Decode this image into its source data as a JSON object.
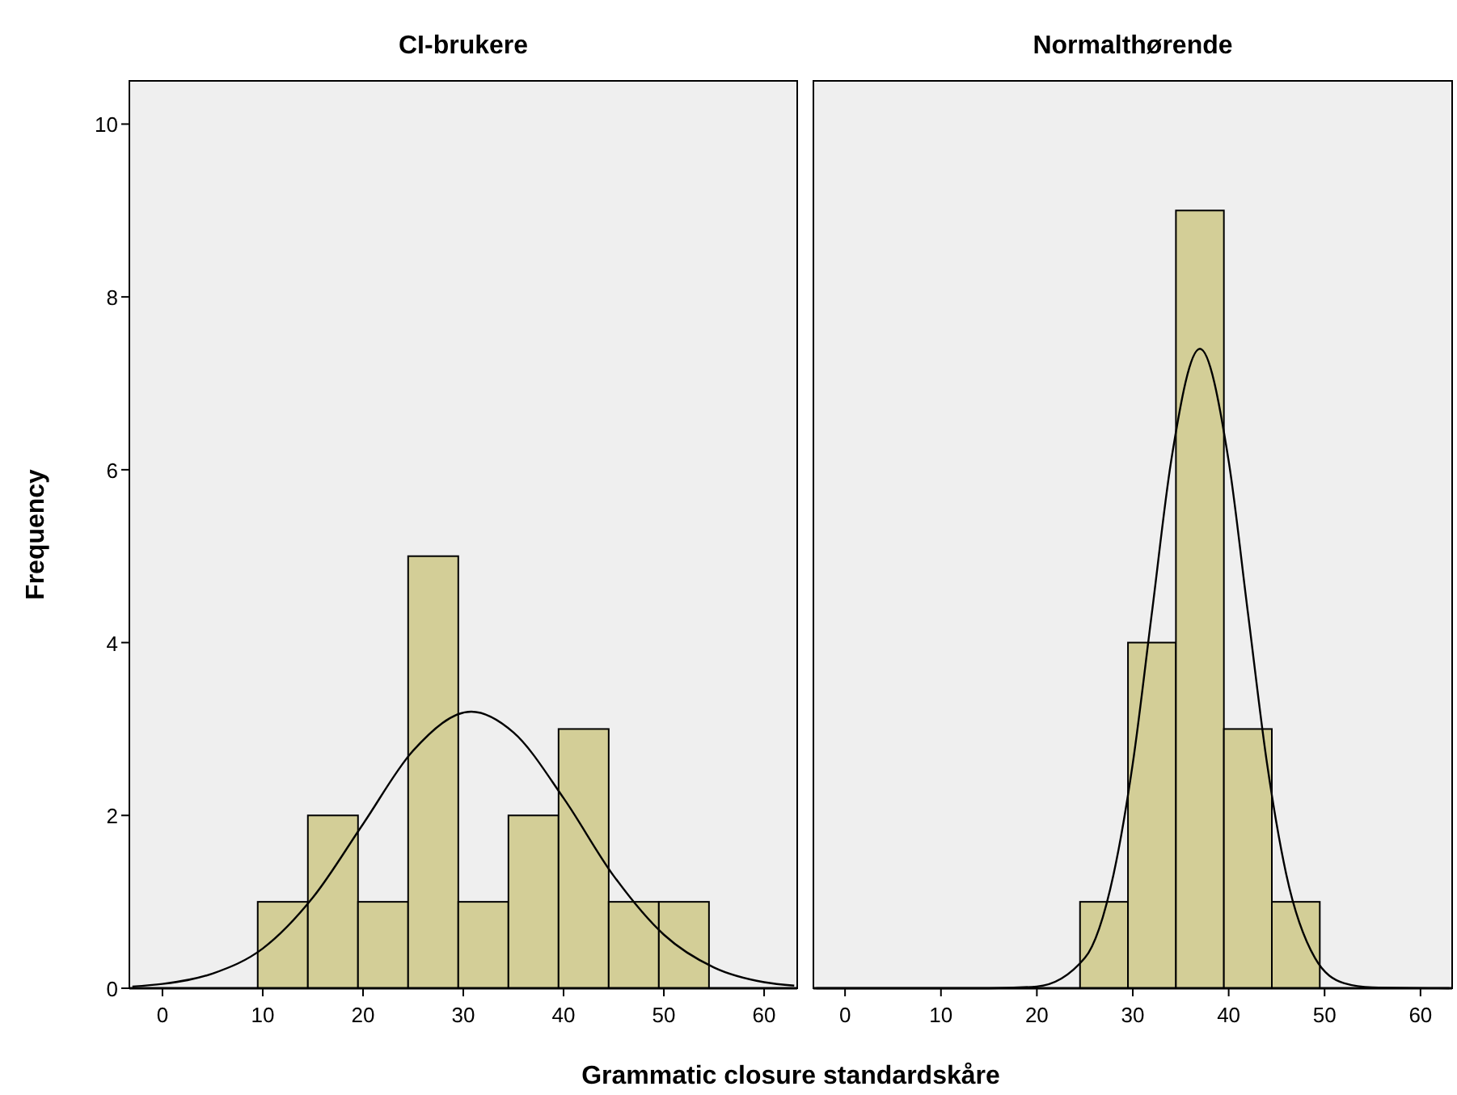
{
  "chart_data": [
    {
      "type": "histogram",
      "title": "CI-brukere",
      "ylabel": "Frequency",
      "bins": [
        9.5,
        14.5,
        19.5,
        24.5,
        29.5,
        34.5,
        39.5,
        44.5,
        49.5,
        54.5
      ],
      "values": [
        1,
        2,
        1,
        5,
        1,
        2,
        3,
        1,
        1
      ],
      "color": "#d3ce97",
      "xlim": [
        -3.3,
        63.3
      ],
      "xticks": [
        0,
        10,
        20,
        30,
        40,
        50,
        60
      ],
      "ylim": [
        0,
        10.5
      ],
      "yticks": [
        0,
        2,
        4,
        6,
        8,
        10
      ],
      "grid": false,
      "series": [
        {
          "type": "line",
          "color": "#000000",
          "x": [
            -3,
            0,
            5,
            10,
            15,
            20,
            25,
            30.8,
            35,
            40,
            45,
            50,
            55,
            60,
            63
          ],
          "values": [
            0.02,
            0.05,
            0.17,
            0.46,
            1.05,
            1.9,
            2.75,
            3.2,
            2.96,
            2.2,
            1.3,
            0.62,
            0.24,
            0.07,
            0.03
          ]
        }
      ]
    },
    {
      "type": "histogram",
      "title": "Normalthørende",
      "xlabel": "Grammatic closure standardskåre",
      "bins": [
        24.5,
        29.5,
        34.5,
        39.5,
        44.5,
        49.5
      ],
      "values": [
        1,
        4,
        9,
        3,
        1
      ],
      "color": "#d3ce97",
      "xlim": [
        -3.3,
        63.3
      ],
      "xticks": [
        0,
        10,
        20,
        30,
        40,
        50,
        60
      ],
      "ylim": [
        0,
        10.5
      ],
      "tick_labels": "x",
      "grid": false,
      "series": [
        {
          "type": "line",
          "color": "#000000",
          "x": [
            -3,
            15,
            20,
            25,
            28,
            30,
            32,
            34,
            37,
            40,
            42,
            44,
            46,
            49,
            52,
            55,
            63
          ],
          "values": [
            0,
            0,
            0.02,
            0.35,
            1.32,
            2.6,
            4.35,
            6.1,
            7.4,
            6.1,
            4.35,
            2.6,
            1.32,
            0.35,
            0.06,
            0.01,
            0
          ]
        }
      ]
    }
  ]
}
